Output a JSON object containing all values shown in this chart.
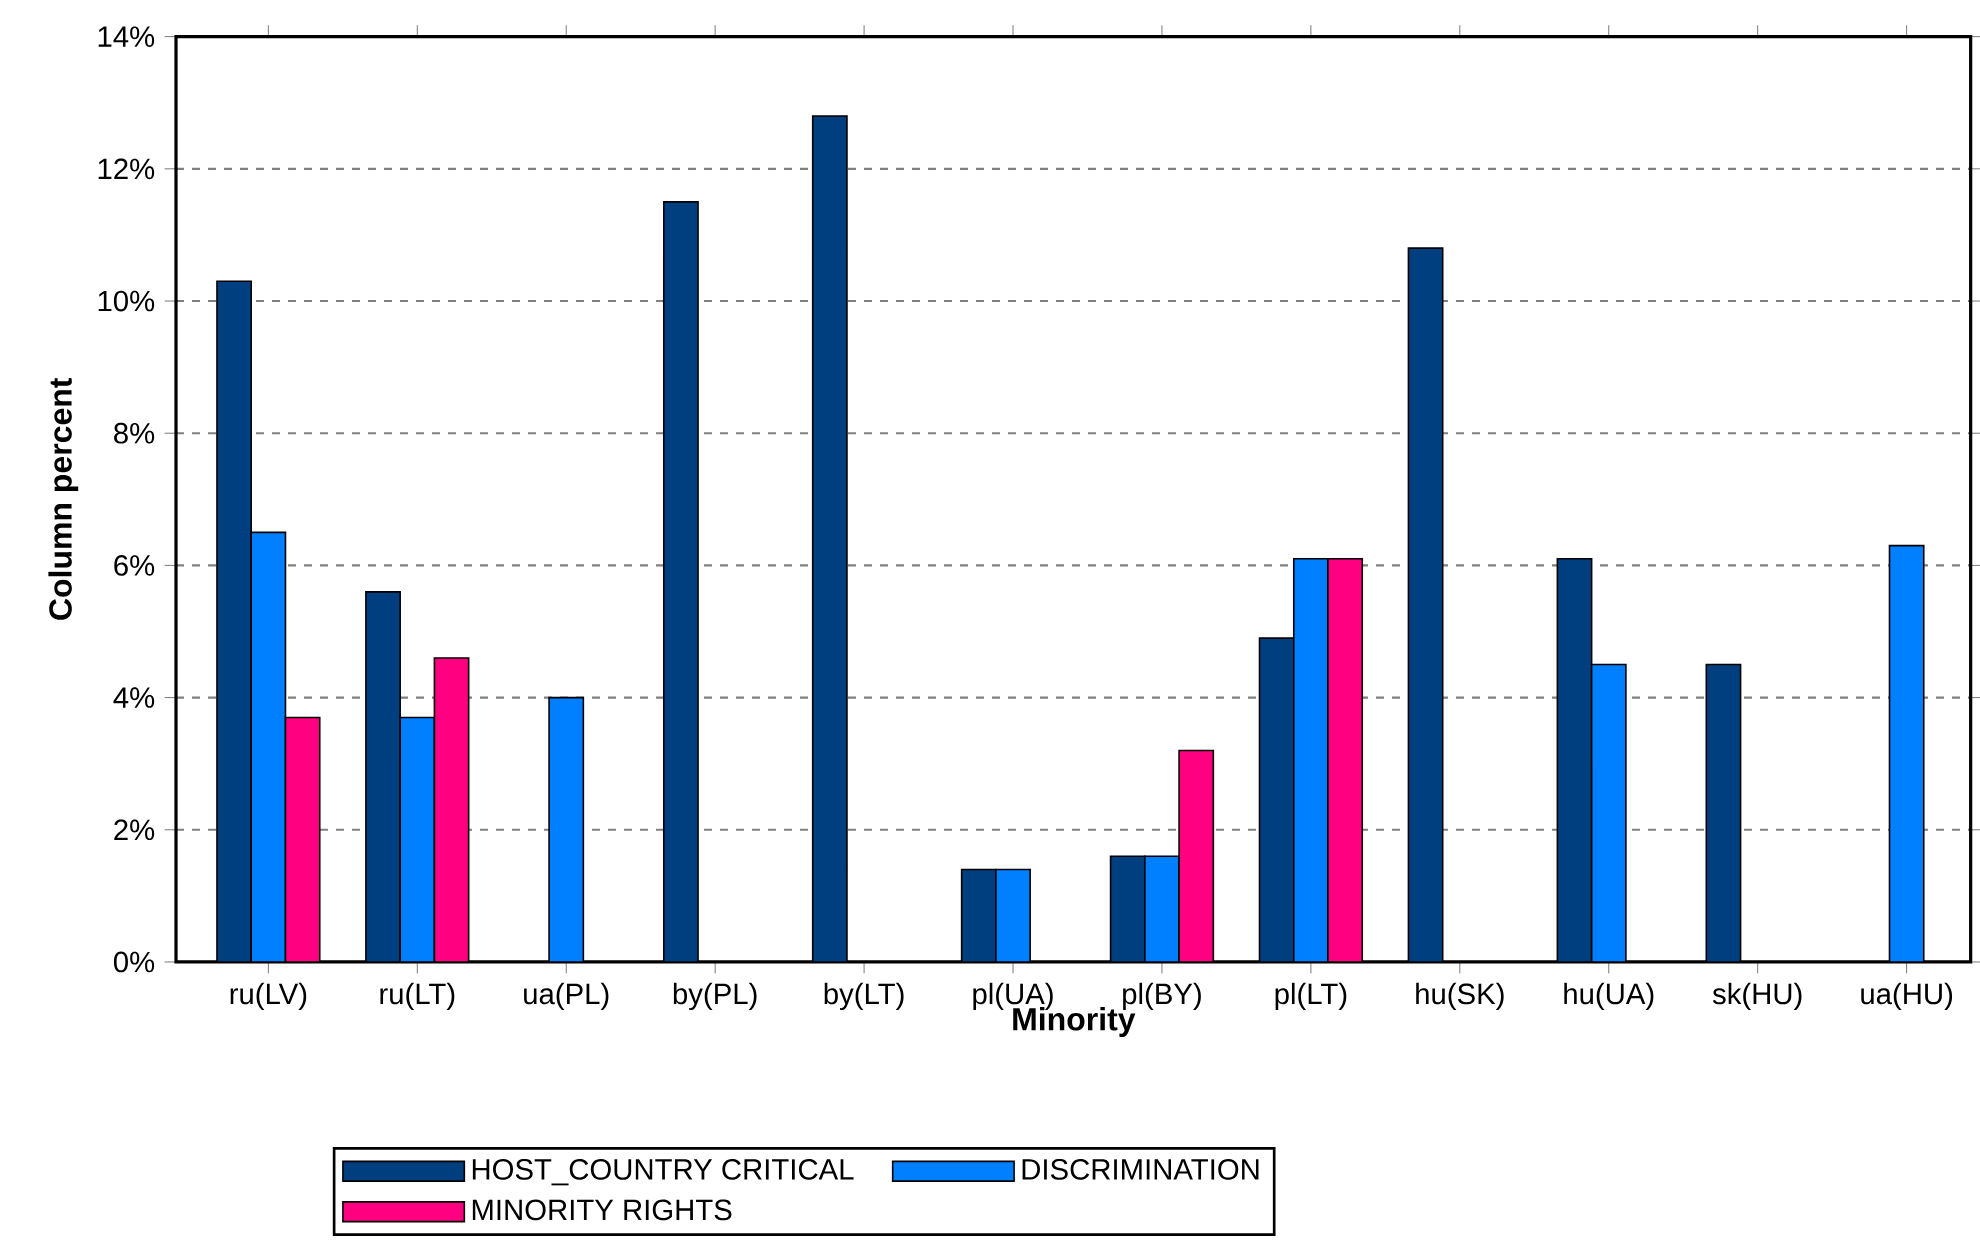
{
  "chart_data": {
    "type": "bar",
    "xlabel": "Minority",
    "ylabel": "Column percent",
    "categories": [
      "ru(LV)",
      "ru(LT)",
      "ua(PL)",
      "by(PL)",
      "by(LT)",
      "pl(UA)",
      "pl(BY)",
      "pl(LT)",
      "hu(SK)",
      "hu(UA)",
      "sk(HU)",
      "ua(HU)"
    ],
    "series": [
      {
        "name": "HOST_COUNTRY CRITICAL",
        "color": "#003f7f",
        "values": [
          10.3,
          5.6,
          null,
          11.5,
          12.8,
          1.4,
          1.6,
          4.9,
          10.8,
          6.1,
          4.5,
          null
        ]
      },
      {
        "name": "DISCRIMINATION",
        "color": "#0080ff",
        "values": [
          6.5,
          3.7,
          4.0,
          null,
          null,
          1.4,
          1.6,
          6.1,
          null,
          4.5,
          null,
          6.3
        ]
      },
      {
        "name": "MINORITY RIGHTS",
        "color": "#ff0080",
        "values": [
          3.7,
          4.6,
          null,
          null,
          null,
          null,
          3.2,
          6.1,
          null,
          null,
          null,
          null
        ]
      }
    ],
    "ylim": [
      0,
      14
    ],
    "yticks": [
      {
        "value": 0,
        "label": "0%"
      },
      {
        "value": 2,
        "label": "2%"
      },
      {
        "value": 4,
        "label": "4%"
      },
      {
        "value": 6,
        "label": "6%"
      },
      {
        "value": 8,
        "label": "8%"
      },
      {
        "value": 10,
        "label": "10%"
      },
      {
        "value": 12,
        "label": "12%"
      },
      {
        "value": 14,
        "label": "14%"
      }
    ],
    "grid": "y",
    "legend": "bottom"
  }
}
